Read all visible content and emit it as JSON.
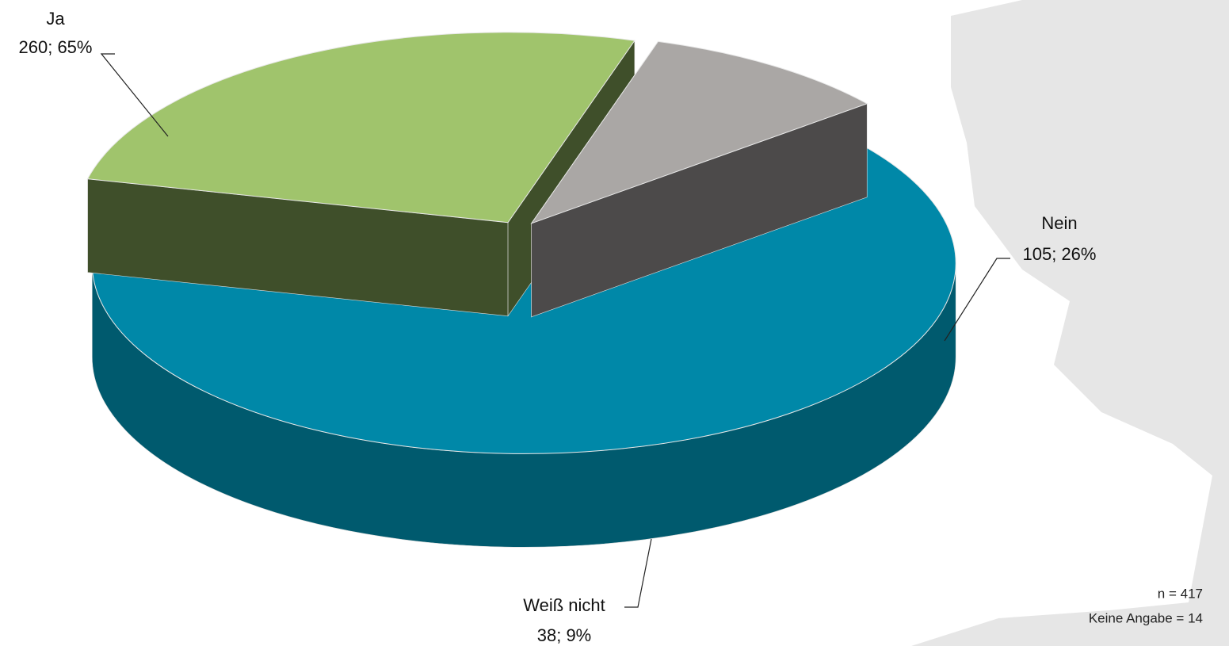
{
  "chart_data": {
    "type": "pie",
    "categories": [
      "Ja",
      "Nein",
      "Weiß nicht"
    ],
    "values": [
      260,
      105,
      38
    ],
    "value_labels": [
      "260; 65%",
      "105; 26%",
      "38; 9%"
    ],
    "colors": [
      "#0088a8",
      "#a0c46c",
      "#aaa7a5"
    ],
    "side_colors": [
      "#005a6e",
      "#3f4f2a",
      "#4c4a4a"
    ],
    "annotations": [
      "n = 417",
      "Keine Angabe = 14"
    ]
  }
}
